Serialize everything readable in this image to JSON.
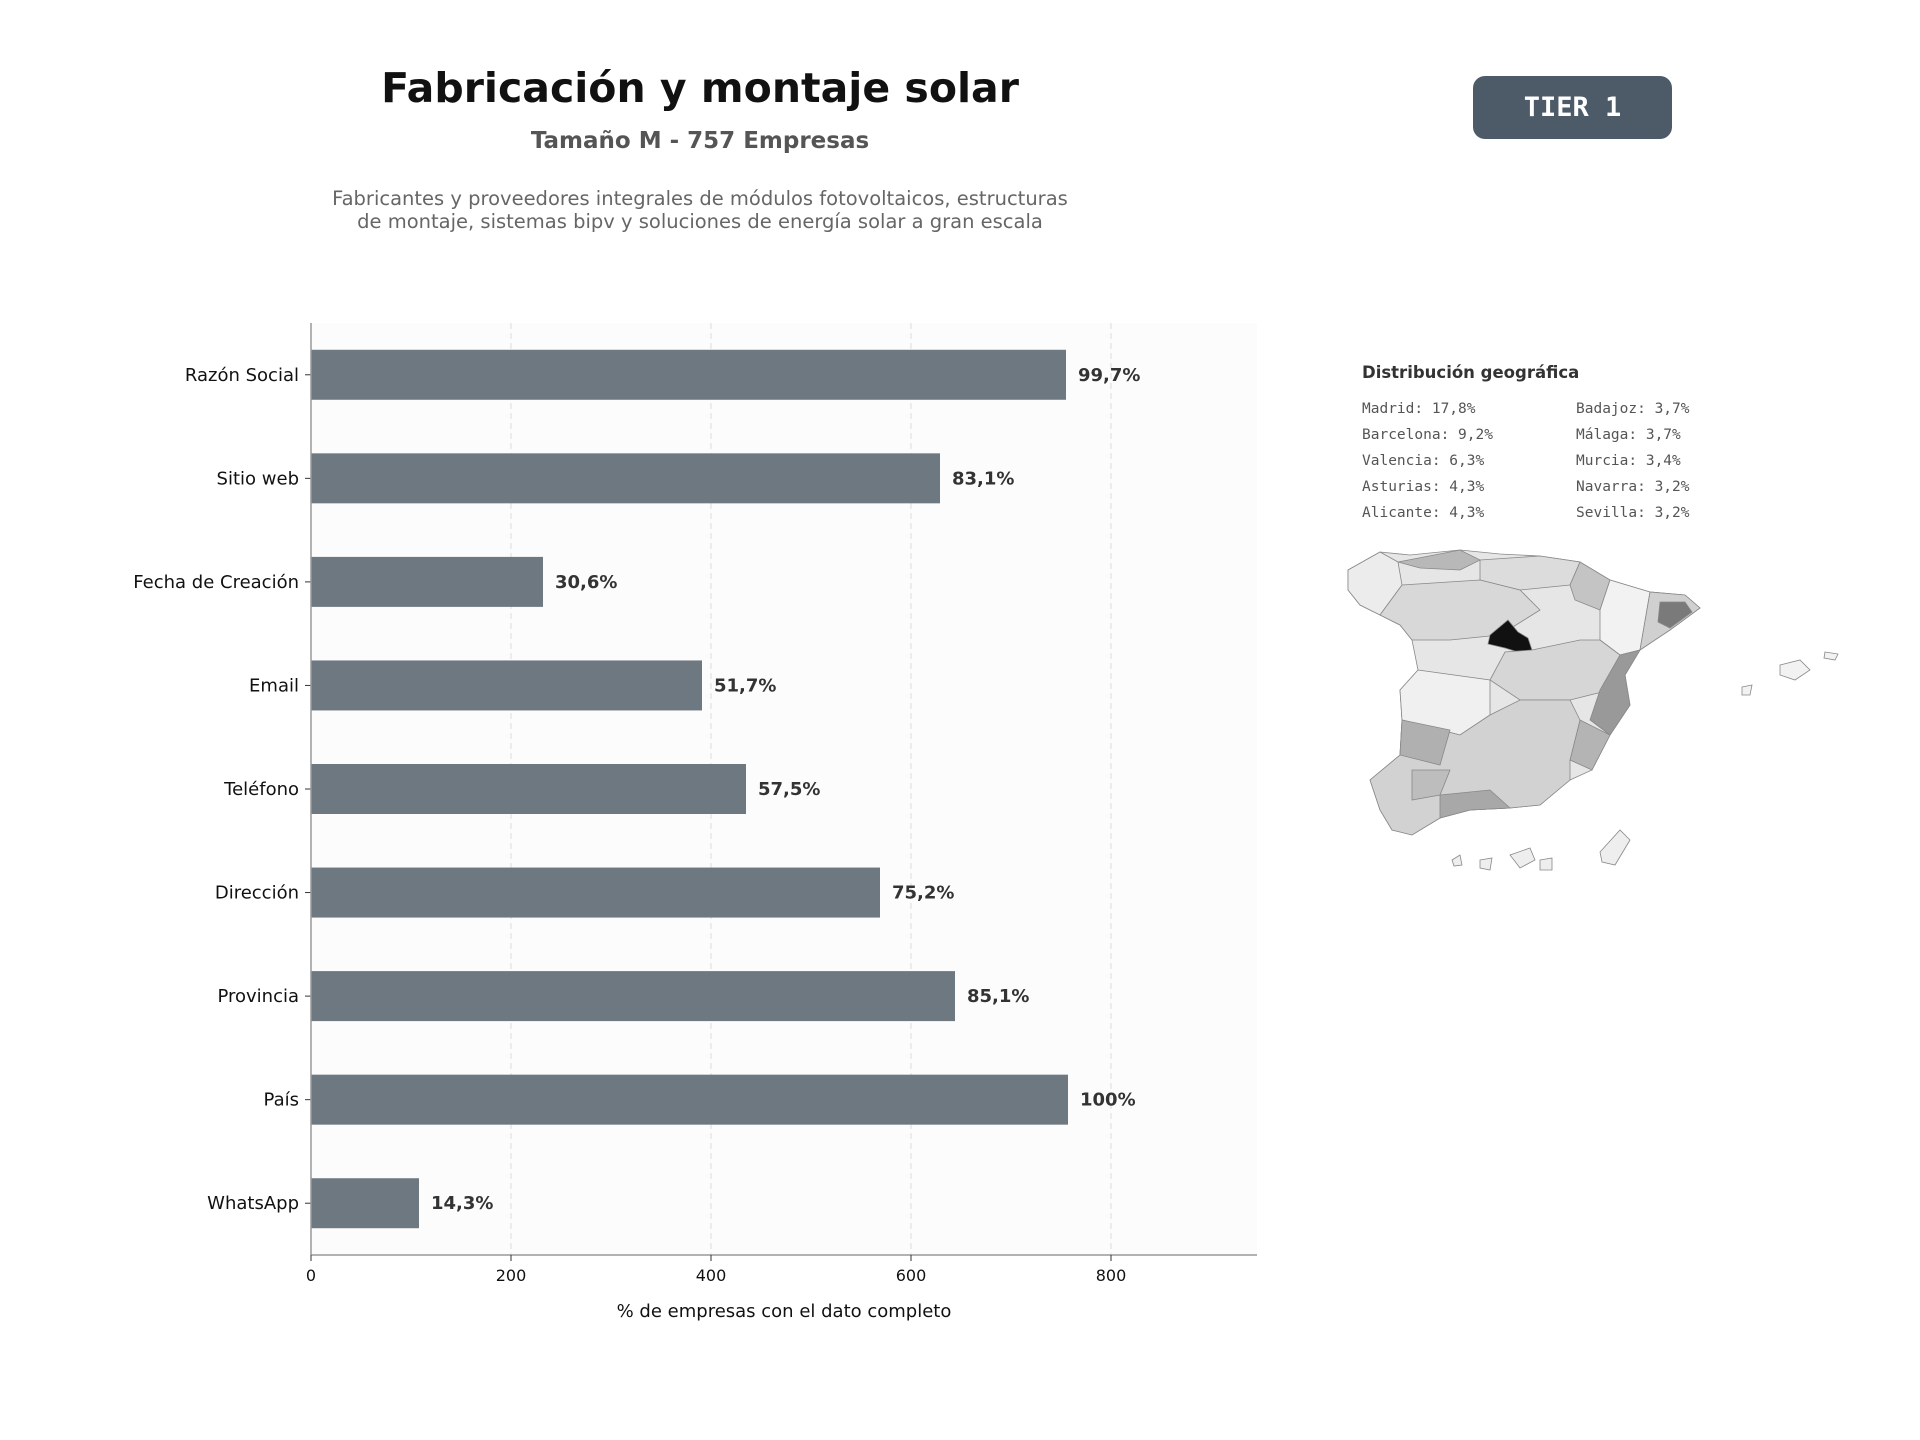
{
  "header": {
    "title": "Fabricación y montaje solar",
    "subtitle": "Tamaño M - 757 Empresas",
    "description": "Fabricantes y proveedores integrales de módulos fotovoltaicos, estructuras de montaje, sistemas bipv y soluciones de energía solar a gran escala",
    "tier_label": "TIER 1"
  },
  "chart_data": {
    "type": "bar",
    "orientation": "horizontal",
    "categories": [
      "Razón Social",
      "Sitio web",
      "Fecha de Creación",
      "Email",
      "Teléfono",
      "Dirección",
      "Provincia",
      "País",
      "WhatsApp"
    ],
    "values": [
      755,
      629,
      232,
      391,
      435,
      569,
      644,
      757,
      108
    ],
    "value_labels": [
      "99,7%",
      "83,1%",
      "30,6%",
      "51,7%",
      "57,5%",
      "75,2%",
      "85,1%",
      "100%",
      "14,3%"
    ],
    "xlabel": "% de empresas con el dato completo",
    "xticks": [
      0,
      200,
      400,
      600,
      800
    ],
    "xlim": [
      0,
      946
    ],
    "grid": "vertical dashed",
    "bar_color": "#6e7881"
  },
  "geo": {
    "title": "Distribución geográfica",
    "items": [
      "Madrid: 17,8%",
      "Badajoz: 3,7%",
      "Barcelona: 9,2%",
      "Málaga: 3,7%",
      "Valencia: 6,3%",
      "Murcia: 3,4%",
      "Asturias: 4,3%",
      "Navarra: 3,2%",
      "Alicante: 4,3%",
      "Sevilla: 3,2%"
    ]
  }
}
